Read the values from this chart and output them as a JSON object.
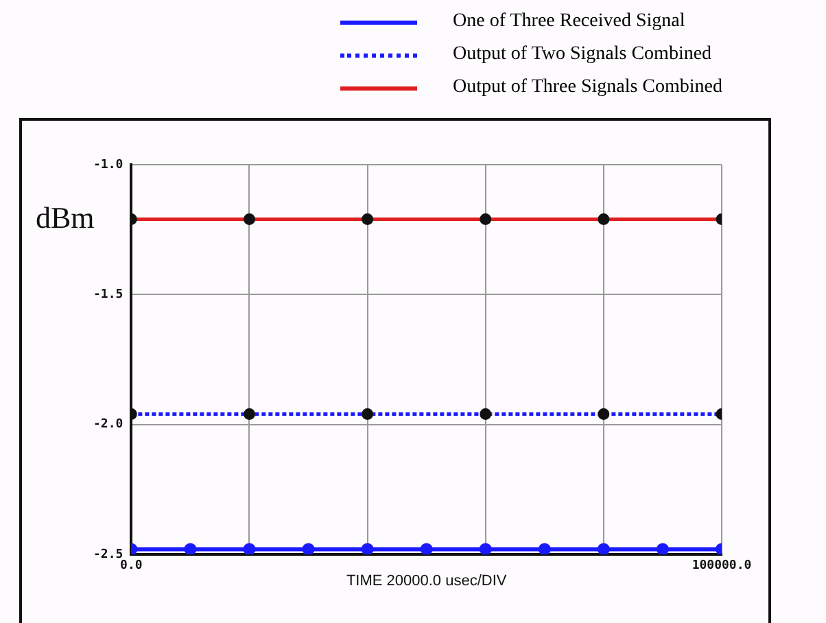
{
  "chart_data": {
    "type": "line",
    "xlabel": "TIME 20000.0 usec/DIV",
    "ylabel": "dBm",
    "xlim": [
      0,
      100000
    ],
    "ylim": [
      -2.5,
      -1.0
    ],
    "xticks": [
      {
        "value": 0,
        "label": "0.0"
      },
      {
        "value": 20000,
        "label": null
      },
      {
        "value": 40000,
        "label": null
      },
      {
        "value": 60000,
        "label": null
      },
      {
        "value": 80000,
        "label": null
      },
      {
        "value": 100000,
        "label": "100000.0"
      }
    ],
    "yticks": [
      {
        "value": -1.0,
        "label": "-1.0"
      },
      {
        "value": -1.5,
        "label": "-1.5"
      },
      {
        "value": -2.0,
        "label": "-2.0"
      },
      {
        "value": -2.5,
        "label": "-2.5"
      }
    ],
    "grid": true,
    "legend": "top right",
    "series": [
      {
        "name": "One of Three Received Signal",
        "color": "#1a1aff",
        "line_style": "solid",
        "marker": "circle",
        "x": [
          0,
          10000,
          20000,
          30000,
          40000,
          50000,
          60000,
          70000,
          80000,
          90000,
          100000
        ],
        "values": [
          -2.48,
          -2.48,
          -2.48,
          -2.48,
          -2.48,
          -2.48,
          -2.48,
          -2.48,
          -2.48,
          -2.48,
          -2.48
        ]
      },
      {
        "name": "Output of Two Signals Combined",
        "color": "#1a1aff",
        "line_style": "dotted",
        "marker": "circle",
        "x": [
          0,
          20000,
          40000,
          60000,
          80000,
          100000
        ],
        "values": [
          -1.96,
          -1.96,
          -1.96,
          -1.96,
          -1.96,
          -1.96
        ]
      },
      {
        "name": "Output of Three Signals Combined",
        "color": "#e02020",
        "line_style": "solid",
        "marker": "circle",
        "x": [
          0,
          20000,
          40000,
          60000,
          80000,
          100000
        ],
        "values": [
          -1.21,
          -1.21,
          -1.21,
          -1.21,
          -1.21,
          -1.21
        ]
      }
    ]
  }
}
